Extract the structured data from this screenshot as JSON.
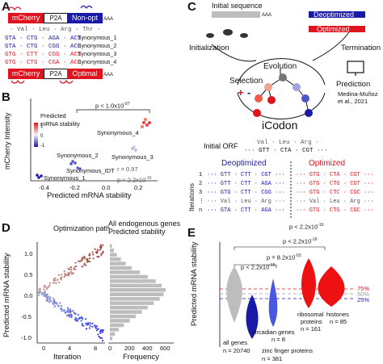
{
  "panels": {
    "a": {
      "label": "A",
      "construct_top": {
        "mcherry": "mCherry",
        "p2a": "P2A",
        "nonopt": "Non-opt",
        "polya": "AAA"
      },
      "aa_line": "· Val · Leu · Arg · Thr ·",
      "seq_lines": [
        {
          "seq": "GTA · CTG · AGA · ACT",
          "label": "Synonymous_1"
        },
        {
          "seq": "GTA · CTG · CGG · ACC",
          "label": "Synonymous_2"
        },
        {
          "seq": "GTG · CTT · CGG · ACT",
          "label": "Synonymous_3"
        },
        {
          "seq": "GTG · CTG · CGA · ACC",
          "label": "Synonymous_4"
        }
      ],
      "construct_bottom": {
        "mcherry": "mCherry",
        "p2a": "P2A",
        "optimal": "Optimal",
        "polya": "AAA"
      }
    },
    "b": {
      "label": "B",
      "ylabel": "mCherry Intensity",
      "xlabel": "Predicted mRNA stability",
      "legend_title": "Predicted\nmRNA stability",
      "legend_ticks": [
        "1",
        "0",
        "-1"
      ],
      "pvalue_top": "p < 1.0x10",
      "pvalue_top_exp": "-07",
      "r_text": "r = 0.97",
      "p_text": "p < 2.2x10",
      "p_text_exp": "-16",
      "xticks": [
        "-0.4",
        "-0.2",
        "0.0",
        "0.2"
      ]
    },
    "c": {
      "label": "C",
      "initial_sequence": "Initial sequence",
      "polya": "AAA",
      "deoptimized": "Deoptimized",
      "optimized": "Optimized",
      "initialization": "Initialization",
      "termination": "Termination",
      "evolution": "Evolution",
      "selection": "Selection",
      "plus": "+",
      "minus": "-",
      "prediction": "Prediction",
      "citation": "Medina-Muñoz\net al., 2021",
      "center": "iCodon",
      "initial_orf": "Initial ORF",
      "orf_aa": "Val · Leu · Arg ·",
      "orf_seq": "··· GTT · CTA · CGT ···",
      "deopt_head": "Deoptimized",
      "opt_head": "Optimized",
      "iterations_label": "Iterations",
      "deopt_rows": [
        "··· GTT · CTT · CGT ···",
        "··· GTT · CTT · AGA ···",
        "··· GTG · CTT · CGG ···",
        "··· Val · Leu · Arg ···",
        "··· GTA · CTT · AGA ···"
      ],
      "opt_rows": [
        "··· GTG · CTA · CGT ···",
        "··· GTG · CTG · CGT ···",
        "··· GTG · CTC · CGC ···",
        "··· Val · Leu · Arg ···",
        "··· GTG · CTG · CGC ···"
      ],
      "iter_marks": [
        "1",
        "2",
        "3",
        "⋮",
        "n"
      ]
    },
    "d": {
      "label": "D",
      "title_left": "Optimization path",
      "title_right": "All endogenous genes\nPredicted stability",
      "ylabel": "Predicted mRNA stability",
      "xlabel_left": "Iteration",
      "xlabel_right": "Frequency",
      "yticks": [
        "1.0",
        "0.5",
        "0.0",
        "-0.5",
        "-1.0"
      ],
      "xticks_left": [
        "0",
        "4",
        "8"
      ],
      "xticks_right": [
        "0",
        "200",
        "400",
        "600"
      ]
    },
    "e": {
      "label": "E",
      "ylabel": "Predicted mRNA stability",
      "pct": [
        "75%",
        "50%",
        "25%"
      ],
      "pvals": [
        {
          "base": "p < 2.2x10",
          "exp": "-16"
        },
        {
          "base": "p = 8.2x10",
          "exp": "-03"
        },
        {
          "base": "p < 2.2x10",
          "exp": "-16"
        },
        {
          "base": "p < 2.2x10",
          "exp": "-16"
        }
      ],
      "groups": [
        {
          "name": "all genes",
          "n": "n = 20740",
          "color": "#bdbdbd"
        },
        {
          "name": "zinc finger proteins",
          "n": "n = 381",
          "color": "#1a1aa8"
        },
        {
          "name": "circadian genes",
          "n": "n = 8",
          "color": "#4a57e0"
        },
        {
          "name": "ribosomal proteins",
          "n": "n = 161",
          "color": "#ee1111"
        },
        {
          "name": "histones",
          "n": "n = 85",
          "color": "#ee1111"
        }
      ]
    }
  },
  "colors": {
    "blue": "#1a1aa8",
    "red": "#e0141e",
    "grey": "#bdbdbd",
    "black": "#111111"
  }
}
